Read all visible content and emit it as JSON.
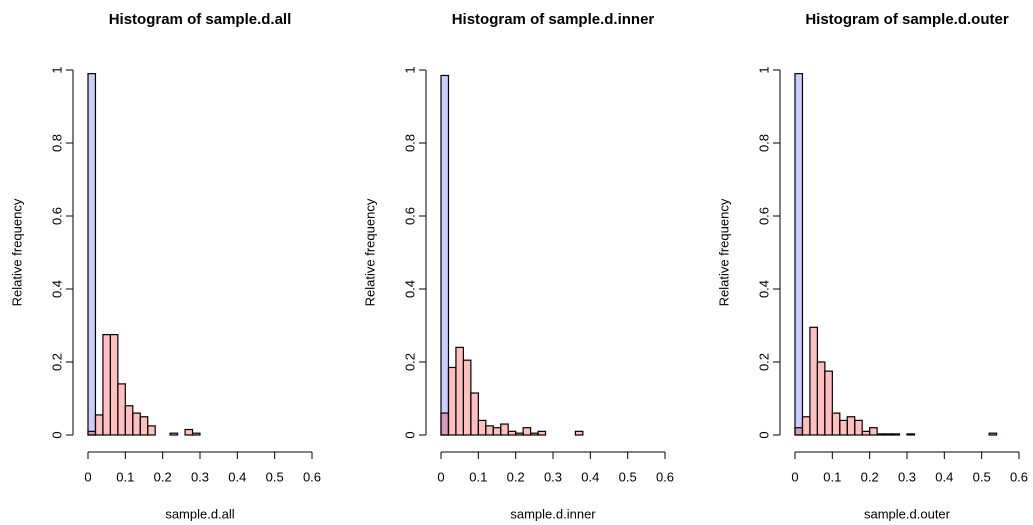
{
  "chart_data": [
    {
      "type": "histogram",
      "title": "Histogram of sample.d.all",
      "xlabel": "sample.d.all",
      "ylabel": "Relative frequency",
      "xlim": [
        0,
        0.6
      ],
      "ylim": [
        0,
        1
      ],
      "xticks": [
        0.0,
        0.1,
        0.2,
        0.3,
        0.4,
        0.5,
        0.6
      ],
      "yticks": [
        0.0,
        0.2,
        0.4,
        0.6,
        0.8,
        1.0
      ],
      "series": [
        {
          "color": "#0000ff33",
          "bins": [
            0,
            0.02
          ],
          "values": [
            0.99
          ]
        },
        {
          "color": "#ff000040",
          "bins": [
            0,
            0.02,
            0.04,
            0.06,
            0.08,
            0.1,
            0.12,
            0.14,
            0.16,
            0.18,
            0.2,
            0.22,
            0.24,
            0.26,
            0.28,
            0.3,
            0.32,
            0.34,
            0.36,
            0.38,
            0.4,
            0.42,
            0.44,
            0.46,
            0.48,
            0.5,
            0.52,
            0.54,
            0.56,
            0.58,
            0.6
          ],
          "values": [
            0.01,
            0.055,
            0.275,
            0.275,
            0.14,
            0.08,
            0.06,
            0.05,
            0.025,
            0,
            0,
            0.005,
            0,
            0.015,
            0.005,
            0,
            0,
            0,
            0,
            0,
            0,
            0,
            0,
            0,
            0,
            0,
            0,
            0,
            0,
            0
          ]
        }
      ]
    },
    {
      "type": "histogram",
      "title": "Histogram of sample.d.inner",
      "xlabel": "sample.d.inner",
      "ylabel": "Relative frequency",
      "xlim": [
        0,
        0.6
      ],
      "ylim": [
        0,
        1
      ],
      "xticks": [
        0.0,
        0.1,
        0.2,
        0.3,
        0.4,
        0.5,
        0.6
      ],
      "yticks": [
        0.0,
        0.2,
        0.4,
        0.6,
        0.8,
        1.0
      ],
      "series": [
        {
          "color": "#0000ff33",
          "bins": [
            0,
            0.02
          ],
          "values": [
            0.985
          ]
        },
        {
          "color": "#ff000040",
          "bins": [
            0,
            0.02,
            0.04,
            0.06,
            0.08,
            0.1,
            0.12,
            0.14,
            0.16,
            0.18,
            0.2,
            0.22,
            0.24,
            0.26,
            0.28,
            0.3,
            0.32,
            0.34,
            0.36,
            0.38,
            0.4,
            0.42,
            0.44,
            0.46,
            0.48,
            0.5,
            0.52,
            0.54,
            0.56,
            0.58,
            0.6
          ],
          "values": [
            0.06,
            0.185,
            0.24,
            0.205,
            0.115,
            0.04,
            0.025,
            0.02,
            0.03,
            0.01,
            0.005,
            0.02,
            0.005,
            0.01,
            0,
            0,
            0,
            0,
            0.01,
            0,
            0,
            0,
            0,
            0,
            0,
            0,
            0,
            0,
            0,
            0
          ]
        }
      ]
    },
    {
      "type": "histogram",
      "title": "Histogram of sample.d.outer",
      "xlabel": "sample.d.outer",
      "ylabel": "Relative frequency",
      "xlim": [
        0,
        0.6
      ],
      "ylim": [
        0,
        1
      ],
      "xticks": [
        0.0,
        0.1,
        0.2,
        0.3,
        0.4,
        0.5,
        0.6
      ],
      "yticks": [
        0.0,
        0.2,
        0.4,
        0.6,
        0.8,
        1.0
      ],
      "series": [
        {
          "color": "#0000ff33",
          "bins": [
            0,
            0.02
          ],
          "values": [
            0.99
          ]
        },
        {
          "color": "#ff000040",
          "bins": [
            0,
            0.02,
            0.04,
            0.06,
            0.08,
            0.1,
            0.12,
            0.14,
            0.16,
            0.18,
            0.2,
            0.22,
            0.24,
            0.26,
            0.28,
            0.3,
            0.32,
            0.34,
            0.36,
            0.38,
            0.4,
            0.42,
            0.44,
            0.46,
            0.48,
            0.5,
            0.52,
            0.54,
            0.56,
            0.58,
            0.6
          ],
          "values": [
            0.02,
            0.05,
            0.295,
            0.2,
            0.175,
            0.06,
            0.04,
            0.05,
            0.04,
            0.01,
            0.02,
            0.003,
            0.003,
            0.003,
            0,
            0.003,
            0,
            0,
            0,
            0,
            0,
            0,
            0,
            0,
            0,
            0,
            0.005,
            0,
            0,
            0
          ]
        }
      ]
    }
  ]
}
